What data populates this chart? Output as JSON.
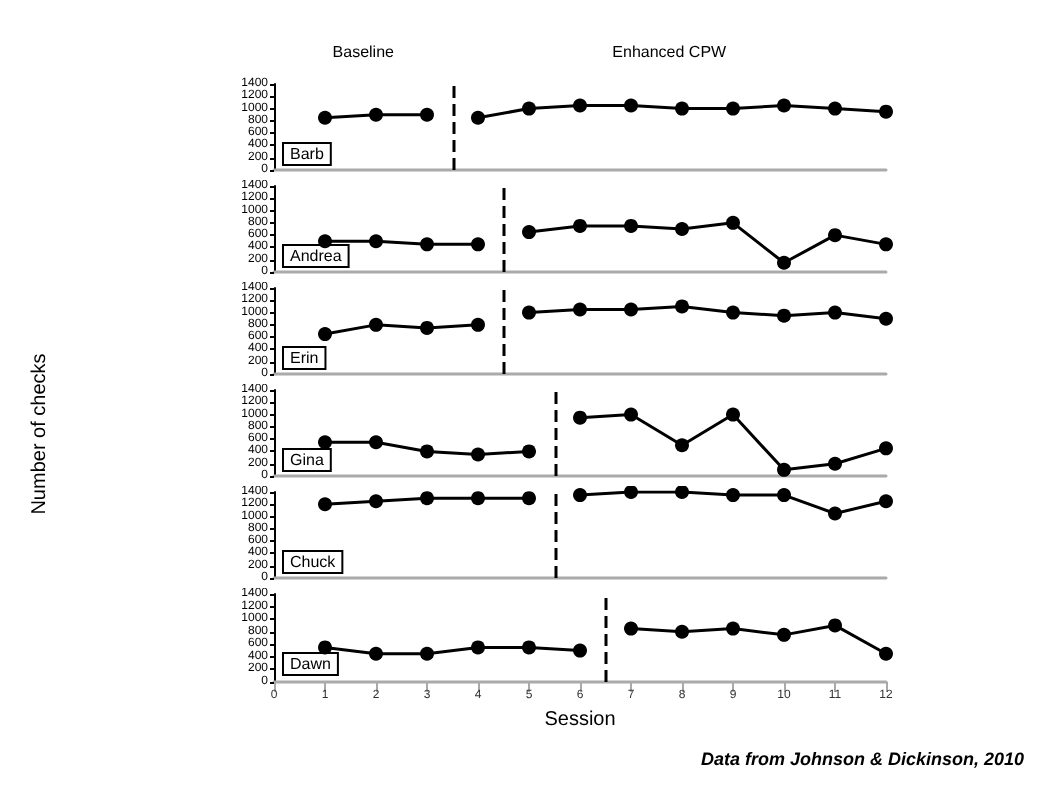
{
  "chart_data": [
    {
      "type": "line",
      "annotations": [
        "Barb",
        "Baseline",
        "Enhanced CPW"
      ],
      "xlim": [
        0,
        12
      ],
      "xticks": [
        0,
        1,
        2,
        3,
        4,
        5,
        6,
        7,
        8,
        9,
        10,
        11,
        12
      ],
      "ylim": [
        0,
        1400
      ],
      "yticks": [
        0,
        200,
        400,
        600,
        800,
        1000,
        1200,
        1400
      ],
      "tick_labels": "y",
      "grid": false,
      "marker": "circle",
      "series": [
        {
          "color": "#000000",
          "x": [
            1,
            2,
            3
          ],
          "values": [
            850,
            900,
            900
          ]
        },
        {
          "color": "#000000",
          "x": [
            4,
            5,
            6,
            7,
            8,
            9,
            10,
            11,
            12
          ],
          "values": [
            850,
            1000,
            1050,
            1050,
            1000,
            1000,
            1050,
            1000,
            950
          ]
        }
      ],
      "ref_lines": [
        {
          "axis": "x",
          "value": 3.5,
          "line_style": "dashed",
          "color": "#000000"
        }
      ]
    },
    {
      "type": "line",
      "annotations": [
        "Andrea"
      ],
      "xlim": [
        0,
        12
      ],
      "xticks": [
        0,
        1,
        2,
        3,
        4,
        5,
        6,
        7,
        8,
        9,
        10,
        11,
        12
      ],
      "ylim": [
        0,
        1400
      ],
      "yticks": [
        0,
        200,
        400,
        600,
        800,
        1000,
        1200,
        1400
      ],
      "tick_labels": "y",
      "grid": false,
      "marker": "circle",
      "series": [
        {
          "color": "#000000",
          "x": [
            1,
            2,
            3,
            4
          ],
          "values": [
            500,
            500,
            450,
            450
          ]
        },
        {
          "color": "#000000",
          "x": [
            5,
            6,
            7,
            8,
            9,
            10,
            11,
            12
          ],
          "values": [
            650,
            750,
            750,
            700,
            800,
            150,
            600,
            450
          ]
        }
      ],
      "ref_lines": [
        {
          "axis": "x",
          "value": 4.5,
          "line_style": "dashed",
          "color": "#000000"
        }
      ]
    },
    {
      "type": "line",
      "annotations": [
        "Erin"
      ],
      "xlim": [
        0,
        12
      ],
      "xticks": [
        0,
        1,
        2,
        3,
        4,
        5,
        6,
        7,
        8,
        9,
        10,
        11,
        12
      ],
      "ylim": [
        0,
        1400
      ],
      "yticks": [
        0,
        200,
        400,
        600,
        800,
        1000,
        1200,
        1400
      ],
      "tick_labels": "y",
      "grid": false,
      "marker": "circle",
      "series": [
        {
          "color": "#000000",
          "x": [
            1,
            2,
            3,
            4
          ],
          "values": [
            650,
            800,
            750,
            800
          ]
        },
        {
          "color": "#000000",
          "x": [
            5,
            6,
            7,
            8,
            9,
            10,
            11,
            12
          ],
          "values": [
            1000,
            1050,
            1050,
            1100,
            1000,
            950,
            1000,
            900
          ]
        }
      ],
      "ref_lines": [
        {
          "axis": "x",
          "value": 4.5,
          "line_style": "dashed",
          "color": "#000000"
        }
      ]
    },
    {
      "type": "line",
      "ylabel": "Number of checks",
      "annotations": [
        "Gina"
      ],
      "xlim": [
        0,
        12
      ],
      "xticks": [
        0,
        1,
        2,
        3,
        4,
        5,
        6,
        7,
        8,
        9,
        10,
        11,
        12
      ],
      "ylim": [
        0,
        1400
      ],
      "yticks": [
        0,
        200,
        400,
        600,
        800,
        1000,
        1200,
        1400
      ],
      "tick_labels": "y",
      "grid": false,
      "marker": "circle",
      "series": [
        {
          "color": "#000000",
          "x": [
            1,
            2,
            3,
            4,
            5
          ],
          "values": [
            550,
            550,
            400,
            350,
            400
          ]
        },
        {
          "color": "#000000",
          "x": [
            6,
            7,
            8,
            9,
            10,
            11,
            12
          ],
          "values": [
            950,
            1000,
            500,
            1000,
            100,
            200,
            450
          ]
        }
      ],
      "ref_lines": [
        {
          "axis": "x",
          "value": 5.5,
          "line_style": "dashed",
          "color": "#000000"
        }
      ]
    },
    {
      "type": "line",
      "annotations": [
        "Chuck"
      ],
      "xlim": [
        0,
        12
      ],
      "xticks": [
        0,
        1,
        2,
        3,
        4,
        5,
        6,
        7,
        8,
        9,
        10,
        11,
        12
      ],
      "ylim": [
        0,
        1400
      ],
      "yticks": [
        0,
        200,
        400,
        600,
        800,
        1000,
        1200,
        1400
      ],
      "tick_labels": "y",
      "grid": false,
      "marker": "circle",
      "series": [
        {
          "color": "#000000",
          "x": [
            1,
            2,
            3,
            4,
            5
          ],
          "values": [
            1200,
            1250,
            1300,
            1300,
            1300
          ]
        },
        {
          "color": "#000000",
          "x": [
            6,
            7,
            8,
            9,
            10,
            11,
            12
          ],
          "values": [
            1350,
            1400,
            1400,
            1350,
            1350,
            1050,
            1250
          ]
        }
      ],
      "ref_lines": [
        {
          "axis": "x",
          "value": 5.5,
          "line_style": "dashed",
          "color": "#000000"
        }
      ]
    },
    {
      "type": "line",
      "xlabel": "Session",
      "annotations": [
        "Dawn",
        "Data from Johnson & Dickinson, 2010"
      ],
      "xlim": [
        0,
        12
      ],
      "xticks": [
        0,
        1,
        2,
        3,
        4,
        5,
        6,
        7,
        8,
        9,
        10,
        11,
        12
      ],
      "ylim": [
        0,
        1400
      ],
      "yticks": [
        0,
        200,
        400,
        600,
        800,
        1000,
        1200,
        1400
      ],
      "grid": false,
      "marker": "circle",
      "series": [
        {
          "color": "#000000",
          "x": [
            1,
            2,
            3,
            4,
            5,
            6
          ],
          "values": [
            550,
            450,
            450,
            550,
            550,
            500
          ]
        },
        {
          "color": "#000000",
          "x": [
            7,
            8,
            9,
            10,
            11,
            12
          ],
          "values": [
            850,
            800,
            850,
            750,
            900,
            450
          ]
        }
      ],
      "ref_lines": [
        {
          "axis": "x",
          "value": 6.5,
          "line_style": "dashed",
          "color": "#000000"
        }
      ]
    }
  ]
}
